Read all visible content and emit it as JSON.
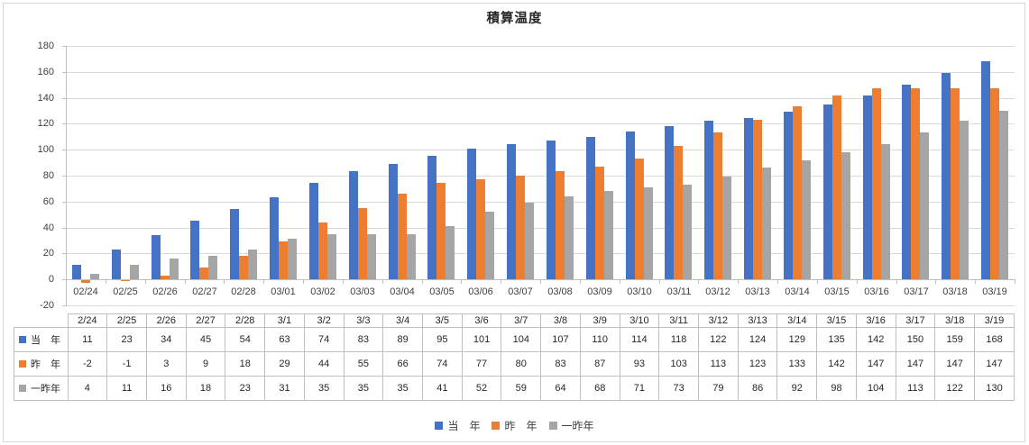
{
  "chart_data": {
    "type": "bar",
    "title": "積算温度",
    "categories": [
      "02/24",
      "02/25",
      "02/26",
      "02/27",
      "02/28",
      "03/01",
      "03/02",
      "03/03",
      "03/04",
      "03/05",
      "03/06",
      "03/07",
      "03/08",
      "03/09",
      "03/10",
      "03/11",
      "03/12",
      "03/13",
      "03/14",
      "03/15",
      "03/16",
      "03/17",
      "03/18",
      "03/19"
    ],
    "series": [
      {
        "name": "当　年",
        "color": "#4472C4",
        "values": [
          11,
          23,
          34,
          45,
          54,
          63,
          74,
          83,
          89,
          95,
          101,
          104,
          107,
          110,
          114,
          118,
          122,
          124,
          129,
          135,
          142,
          150,
          159,
          168
        ]
      },
      {
        "name": "昨　年",
        "color": "#ED7D31",
        "values": [
          -2,
          -1,
          3,
          9,
          18,
          29,
          44,
          55,
          66,
          74,
          77,
          80,
          83,
          87,
          93,
          103,
          113,
          123,
          133,
          142,
          147,
          147,
          147,
          147
        ]
      },
      {
        "name": "一昨年",
        "color": "#A5A5A5",
        "values": [
          4,
          11,
          16,
          18,
          23,
          31,
          35,
          35,
          35,
          41,
          52,
          59,
          64,
          68,
          71,
          73,
          79,
          86,
          92,
          98,
          104,
          113,
          122,
          130
        ]
      }
    ],
    "ylim": [
      -20,
      180
    ],
    "ytick_step": 20,
    "yticks": [
      180,
      160,
      140,
      120,
      100,
      80,
      60,
      40,
      20,
      0,
      -20
    ],
    "grid": true,
    "legend_position": "bottom",
    "gridline_color": "#D9D9D9",
    "axis_color": "#BFBFBF",
    "label_color": "#404040"
  },
  "data_table": {
    "header_dates": [
      "2/24",
      "2/25",
      "2/26",
      "2/27",
      "2/28",
      "3/1",
      "3/2",
      "3/3",
      "3/4",
      "3/5",
      "3/6",
      "3/7",
      "3/8",
      "3/9",
      "3/10",
      "3/11",
      "3/12",
      "3/13",
      "3/14",
      "3/15",
      "3/16",
      "3/17",
      "3/18",
      "3/19"
    ]
  }
}
